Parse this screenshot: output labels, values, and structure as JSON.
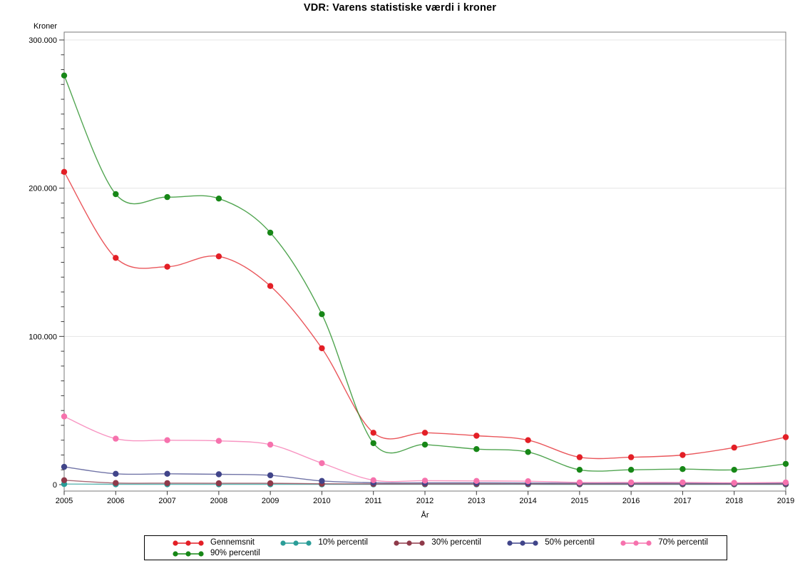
{
  "chart_data": {
    "type": "line",
    "title": "VDR: Varens statistiske værdi i kroner",
    "y_unit_label": "Kroner",
    "xlabel": "År",
    "x": [
      2005,
      2006,
      2007,
      2008,
      2009,
      2010,
      2011,
      2012,
      2013,
      2014,
      2015,
      2016,
      2017,
      2018,
      2019
    ],
    "x_tick_labels": [
      "2005",
      "2006",
      "2007",
      "2008",
      "2009",
      "2010",
      "2011",
      "2012",
      "2013",
      "2014",
      "2015",
      "2016",
      "2017",
      "2018",
      "2019"
    ],
    "ylim": [
      0,
      300000
    ],
    "y_ticks": [
      {
        "value": 0,
        "label": "0"
      },
      {
        "value": 100000,
        "label": "100.000"
      },
      {
        "value": 200000,
        "label": "200.000"
      },
      {
        "value": 300000,
        "label": "300.000"
      }
    ],
    "y_minor_tick_step": 10000,
    "grid": "horizontal-major",
    "legend_position": "bottom-boxed",
    "marker": "filled-circle",
    "interpolation": "spline",
    "series": [
      {
        "name": "Gennemsnit",
        "color": "#e31f26",
        "values": [
          211000,
          153000,
          147000,
          154000,
          134000,
          92000,
          35000,
          35000,
          33000,
          30000,
          18500,
          18500,
          20000,
          25000,
          32000
        ]
      },
      {
        "name": "10% percentil",
        "color": "#2a9d98",
        "values": [
          400,
          250,
          250,
          250,
          250,
          200,
          200,
          200,
          200,
          200,
          150,
          150,
          150,
          150,
          150
        ]
      },
      {
        "name": "30% percentil",
        "color": "#8f3a4a",
        "values": [
          3000,
          1100,
          1000,
          900,
          900,
          600,
          500,
          500,
          500,
          500,
          400,
          400,
          400,
          400,
          400
        ]
      },
      {
        "name": "50% percentil",
        "color": "#41458a",
        "values": [
          12000,
          7300,
          7300,
          7000,
          6300,
          2500,
          1300,
          1200,
          1200,
          1100,
          900,
          900,
          900,
          800,
          900
        ]
      },
      {
        "name": "70% percentil",
        "color": "#f672ad",
        "values": [
          46000,
          31000,
          30000,
          29500,
          27000,
          14500,
          3000,
          2700,
          2500,
          2300,
          1500,
          1500,
          1500,
          1200,
          1500
        ]
      },
      {
        "name": "90% percentil",
        "color": "#178717",
        "values": [
          276000,
          196000,
          194000,
          193000,
          170000,
          115000,
          28000,
          27000,
          24000,
          22000,
          10000,
          10000,
          10500,
          10000,
          14000
        ]
      }
    ],
    "legend_rows": [
      [
        0,
        1,
        2,
        3,
        4
      ],
      [
        5
      ]
    ]
  }
}
